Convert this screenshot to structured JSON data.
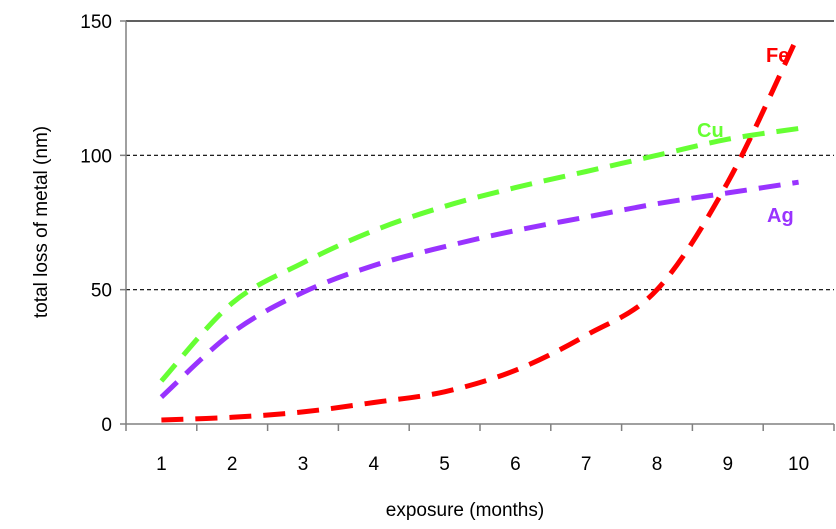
{
  "chart_data": {
    "type": "line",
    "title": "",
    "xlabel": "exposure (months)",
    "ylabel": "total loss of metal (nm)",
    "x": [
      1,
      2,
      3,
      4,
      5,
      6,
      7,
      8,
      9,
      10
    ],
    "x_ticks": [
      "1",
      "2",
      "3",
      "4",
      "5",
      "6",
      "7",
      "8",
      "9",
      "10"
    ],
    "y_ticks": [
      "0",
      "50",
      "100",
      "150"
    ],
    "xlim": [
      0.5,
      10.5
    ],
    "ylim": [
      0,
      150
    ],
    "grid": "horizontal dashed",
    "legend": "none (series labelled directly on the lines)",
    "series": [
      {
        "name": "Fe",
        "color": "#ff0000",
        "values": [
          1.5,
          2.5,
          4.5,
          8,
          12,
          20,
          33,
          50,
          90,
          145
        ]
      },
      {
        "name": "Cu",
        "color": "#66ff33",
        "values": [
          16,
          45,
          60,
          72,
          81,
          88,
          94,
          100,
          106,
          110
        ]
      },
      {
        "name": "Ag",
        "color": "#9933ff",
        "values": [
          10,
          34,
          49,
          59,
          66,
          72,
          77,
          82,
          86,
          90
        ]
      }
    ]
  }
}
